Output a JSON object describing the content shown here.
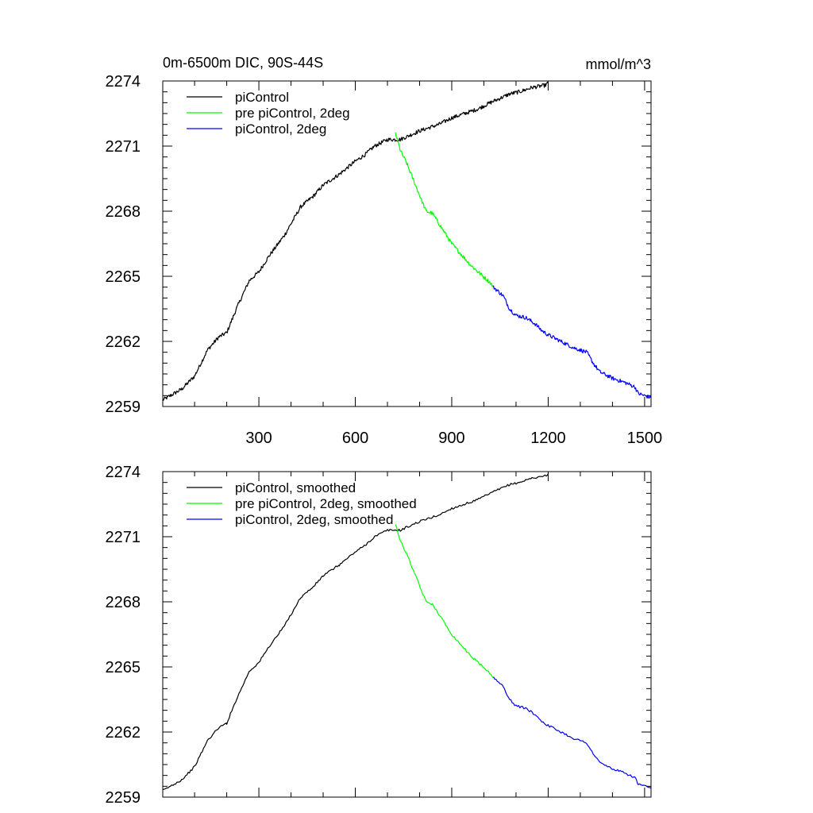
{
  "chart_data": [
    {
      "type": "line",
      "title_left": "0m-6500m DIC, 90S-44S",
      "title_right": "mmol/m^3",
      "xlim": [
        1,
        1520
      ],
      "ylim": [
        2259,
        2274
      ],
      "xticks": [
        300,
        600,
        900,
        1200,
        1500
      ],
      "xtick_labels": [
        "300",
        "600",
        "900",
        "1200",
        "1500"
      ],
      "yticks": [
        2259,
        2262,
        2265,
        2268,
        2271,
        2274
      ],
      "ytick_labels": [
        "2259",
        "2262",
        "2265",
        "2268",
        "2271",
        "2274"
      ],
      "legend_position": "top-left",
      "series": [
        {
          "name": "piControl",
          "color": "#000000",
          "x": [
            1,
            60,
            100,
            140,
            175,
            200,
            230,
            270,
            300,
            330,
            380,
            430,
            470,
            500,
            550,
            600,
            630,
            660,
            700,
            740,
            800,
            860,
            900,
            940,
            980,
            1020,
            1050,
            1080,
            1110,
            1150,
            1190,
            1200
          ],
          "y": [
            2259.3,
            2259.8,
            2260.4,
            2261.6,
            2262.2,
            2262.4,
            2263.5,
            2264.8,
            2265.2,
            2265.9,
            2266.9,
            2268.2,
            2268.7,
            2269.2,
            2269.7,
            2270.3,
            2270.6,
            2271.0,
            2271.3,
            2271.3,
            2271.7,
            2272.0,
            2272.3,
            2272.5,
            2272.7,
            2273.0,
            2273.2,
            2273.4,
            2273.5,
            2273.7,
            2273.8,
            2273.9
          ]
        },
        {
          "name": "pre piControl, 2deg",
          "color": "#00ff00",
          "x": [
            725,
            740,
            760,
            790,
            820,
            840,
            870,
            900,
            930,
            960,
            990,
            1020,
            1030
          ],
          "y": [
            2271.6,
            2270.8,
            2270.2,
            2269.1,
            2268.0,
            2267.9,
            2267.2,
            2266.5,
            2266.0,
            2265.5,
            2265.1,
            2264.7,
            2264.5
          ]
        },
        {
          "name": "piControl, 2deg",
          "color": "#0000ff",
          "x": [
            1030,
            1060,
            1080,
            1100,
            1130,
            1160,
            1180,
            1200,
            1240,
            1280,
            1320,
            1340,
            1360,
            1400,
            1440,
            1470,
            1480,
            1500,
            1520
          ],
          "y": [
            2264.5,
            2264.1,
            2263.5,
            2263.2,
            2263.1,
            2262.8,
            2262.5,
            2262.3,
            2262.0,
            2261.7,
            2261.5,
            2261.0,
            2260.6,
            2260.3,
            2260.1,
            2259.9,
            2259.6,
            2259.5,
            2259.4
          ]
        }
      ]
    },
    {
      "type": "line",
      "xlim": [
        1,
        1520
      ],
      "ylim": [
        2259,
        2274
      ],
      "xticks": [
        300,
        600,
        900,
        1200,
        1500
      ],
      "yticks": [
        2259,
        2262,
        2265,
        2268,
        2271,
        2274
      ],
      "ytick_labels": [
        "2259",
        "2262",
        "2265",
        "2268",
        "2271",
        "2274"
      ],
      "legend_position": "top-left",
      "series": [
        {
          "name": "piControl, smoothed",
          "color": "#000000",
          "x": [
            1,
            60,
            100,
            140,
            175,
            200,
            230,
            270,
            300,
            330,
            380,
            430,
            470,
            500,
            550,
            600,
            630,
            660,
            700,
            740,
            800,
            860,
            900,
            940,
            980,
            1020,
            1050,
            1080,
            1110,
            1150,
            1190,
            1200
          ],
          "y": [
            2259.3,
            2259.8,
            2260.4,
            2261.6,
            2262.2,
            2262.4,
            2263.5,
            2264.8,
            2265.2,
            2265.9,
            2266.9,
            2268.2,
            2268.7,
            2269.2,
            2269.7,
            2270.3,
            2270.6,
            2271.0,
            2271.3,
            2271.3,
            2271.7,
            2272.0,
            2272.3,
            2272.5,
            2272.7,
            2273.0,
            2273.2,
            2273.4,
            2273.5,
            2273.7,
            2273.8,
            2273.9
          ]
        },
        {
          "name": "pre piControl, 2deg, smoothed",
          "color": "#00ff00",
          "x": [
            725,
            740,
            760,
            790,
            820,
            840,
            870,
            900,
            930,
            960,
            990,
            1020,
            1030
          ],
          "y": [
            2271.6,
            2270.8,
            2270.2,
            2269.1,
            2268.0,
            2267.9,
            2267.2,
            2266.5,
            2266.0,
            2265.5,
            2265.1,
            2264.7,
            2264.5
          ]
        },
        {
          "name": "piControl, 2deg, smoothed",
          "color": "#0000ff",
          "x": [
            1030,
            1060,
            1080,
            1100,
            1130,
            1160,
            1180,
            1200,
            1240,
            1280,
            1320,
            1340,
            1360,
            1400,
            1440,
            1470,
            1480,
            1500,
            1520
          ],
          "y": [
            2264.5,
            2264.1,
            2263.5,
            2263.2,
            2263.1,
            2262.8,
            2262.5,
            2262.3,
            2262.0,
            2261.7,
            2261.5,
            2261.0,
            2260.6,
            2260.3,
            2260.1,
            2259.9,
            2259.6,
            2259.5,
            2259.4
          ]
        }
      ]
    }
  ]
}
